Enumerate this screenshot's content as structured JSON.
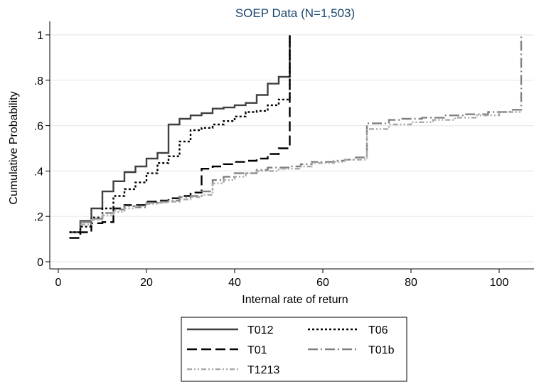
{
  "chart_data": {
    "type": "line",
    "title": "SOEP Data (N=1,503)",
    "xlabel": "Internal rate of return",
    "ylabel": "Cumulative Probability",
    "xlim": [
      -2,
      105
    ],
    "ylim": [
      -0.03,
      1.03
    ],
    "x_ticks": [
      0,
      20,
      40,
      60,
      80,
      100
    ],
    "y_ticks": [
      0,
      0.2,
      0.4,
      0.6,
      0.8,
      1
    ],
    "x_tick_labels": [
      "0",
      "20",
      "40",
      "60",
      "80",
      "100"
    ],
    "y_tick_labels": [
      "0",
      ".2",
      ".4",
      ".6",
      ".8",
      "1"
    ],
    "grid": "horizontal",
    "legend_position": "bottom",
    "series": [
      {
        "name": "T012",
        "color": "#404040",
        "dash": "solid",
        "points": [
          [
            2.5,
            0.13
          ],
          [
            5,
            0.13
          ],
          [
            5,
            0.18
          ],
          [
            7.5,
            0.18
          ],
          [
            7.5,
            0.235
          ],
          [
            10,
            0.235
          ],
          [
            10,
            0.31
          ],
          [
            12.5,
            0.31
          ],
          [
            12.5,
            0.355
          ],
          [
            15,
            0.355
          ],
          [
            15,
            0.395
          ],
          [
            17.5,
            0.395
          ],
          [
            17.5,
            0.42
          ],
          [
            20,
            0.42
          ],
          [
            20,
            0.455
          ],
          [
            22.5,
            0.455
          ],
          [
            22.5,
            0.48
          ],
          [
            25,
            0.48
          ],
          [
            25,
            0.605
          ],
          [
            27.5,
            0.605
          ],
          [
            27.5,
            0.63
          ],
          [
            30,
            0.63
          ],
          [
            30,
            0.645
          ],
          [
            32.5,
            0.645
          ],
          [
            32.5,
            0.655
          ],
          [
            35,
            0.655
          ],
          [
            35,
            0.675
          ],
          [
            37.5,
            0.675
          ],
          [
            37.5,
            0.68
          ],
          [
            40,
            0.68
          ],
          [
            40,
            0.69
          ],
          [
            42.5,
            0.69
          ],
          [
            42.5,
            0.7
          ],
          [
            45,
            0.7
          ],
          [
            45,
            0.735
          ],
          [
            47.5,
            0.735
          ],
          [
            47.5,
            0.785
          ],
          [
            50,
            0.785
          ],
          [
            50,
            0.815
          ],
          [
            52.5,
            0.815
          ],
          [
            52.5,
            1.0
          ]
        ]
      },
      {
        "name": "T06",
        "color": "#000000",
        "dash": "short",
        "points": [
          [
            2.5,
            0.13
          ],
          [
            5,
            0.13
          ],
          [
            5,
            0.155
          ],
          [
            7.5,
            0.155
          ],
          [
            7.5,
            0.195
          ],
          [
            10,
            0.195
          ],
          [
            10,
            0.235
          ],
          [
            12.5,
            0.235
          ],
          [
            12.5,
            0.29
          ],
          [
            15,
            0.29
          ],
          [
            15,
            0.32
          ],
          [
            17.5,
            0.32
          ],
          [
            17.5,
            0.35
          ],
          [
            20,
            0.35
          ],
          [
            20,
            0.39
          ],
          [
            22.5,
            0.39
          ],
          [
            22.5,
            0.435
          ],
          [
            25,
            0.435
          ],
          [
            25,
            0.465
          ],
          [
            27.5,
            0.465
          ],
          [
            27.5,
            0.53
          ],
          [
            30,
            0.53
          ],
          [
            30,
            0.58
          ],
          [
            32.5,
            0.58
          ],
          [
            32.5,
            0.59
          ],
          [
            35,
            0.59
          ],
          [
            35,
            0.605
          ],
          [
            37.5,
            0.605
          ],
          [
            37.5,
            0.62
          ],
          [
            40,
            0.62
          ],
          [
            40,
            0.64
          ],
          [
            42.5,
            0.64
          ],
          [
            42.5,
            0.66
          ],
          [
            45,
            0.66
          ],
          [
            45,
            0.665
          ],
          [
            47.5,
            0.665
          ],
          [
            47.5,
            0.69
          ],
          [
            50,
            0.69
          ],
          [
            50,
            0.715
          ],
          [
            52.5,
            0.715
          ],
          [
            52.5,
            1.0
          ]
        ]
      },
      {
        "name": "T01",
        "color": "#000000",
        "dash": "long",
        "points": [
          [
            2.5,
            0.105
          ],
          [
            5,
            0.105
          ],
          [
            5,
            0.13
          ],
          [
            7.5,
            0.13
          ],
          [
            7.5,
            0.17
          ],
          [
            10,
            0.17
          ],
          [
            10,
            0.175
          ],
          [
            12.5,
            0.175
          ],
          [
            12.5,
            0.235
          ],
          [
            15,
            0.235
          ],
          [
            15,
            0.25
          ],
          [
            20,
            0.25
          ],
          [
            20,
            0.265
          ],
          [
            22.5,
            0.265
          ],
          [
            22.5,
            0.27
          ],
          [
            25,
            0.27
          ],
          [
            25,
            0.28
          ],
          [
            27.5,
            0.28
          ],
          [
            27.5,
            0.29
          ],
          [
            30,
            0.29
          ],
          [
            30,
            0.305
          ],
          [
            32.5,
            0.305
          ],
          [
            32.5,
            0.41
          ],
          [
            35,
            0.41
          ],
          [
            35,
            0.42
          ],
          [
            37.5,
            0.42
          ],
          [
            37.5,
            0.43
          ],
          [
            40,
            0.43
          ],
          [
            40,
            0.44
          ],
          [
            42.5,
            0.44
          ],
          [
            42.5,
            0.445
          ],
          [
            45,
            0.445
          ],
          [
            45,
            0.455
          ],
          [
            47.5,
            0.455
          ],
          [
            47.5,
            0.475
          ],
          [
            50,
            0.475
          ],
          [
            50,
            0.5
          ],
          [
            52.5,
            0.5
          ],
          [
            52.5,
            1.0
          ]
        ]
      },
      {
        "name": "T01b",
        "color": "#808080",
        "dash": "longdot",
        "points": [
          [
            5,
            0.175
          ],
          [
            7.5,
            0.175
          ],
          [
            7.5,
            0.19
          ],
          [
            10,
            0.19
          ],
          [
            10,
            0.215
          ],
          [
            12.5,
            0.215
          ],
          [
            12.5,
            0.23
          ],
          [
            15,
            0.23
          ],
          [
            15,
            0.245
          ],
          [
            17.5,
            0.245
          ],
          [
            17.5,
            0.24
          ],
          [
            20,
            0.24
          ],
          [
            20,
            0.26
          ],
          [
            22.5,
            0.26
          ],
          [
            22.5,
            0.265
          ],
          [
            25,
            0.265
          ],
          [
            25,
            0.27
          ],
          [
            27.5,
            0.27
          ],
          [
            27.5,
            0.285
          ],
          [
            30,
            0.285
          ],
          [
            30,
            0.29
          ],
          [
            32.5,
            0.29
          ],
          [
            32.5,
            0.31
          ],
          [
            35,
            0.31
          ],
          [
            35,
            0.36
          ],
          [
            37.5,
            0.36
          ],
          [
            37.5,
            0.375
          ],
          [
            40,
            0.375
          ],
          [
            40,
            0.39
          ],
          [
            45,
            0.39
          ],
          [
            45,
            0.405
          ],
          [
            47.5,
            0.405
          ],
          [
            47.5,
            0.415
          ],
          [
            52.5,
            0.415
          ],
          [
            52.5,
            0.42
          ],
          [
            55,
            0.42
          ],
          [
            55,
            0.43
          ],
          [
            57.5,
            0.43
          ],
          [
            57.5,
            0.44
          ],
          [
            62.5,
            0.44
          ],
          [
            62.5,
            0.445
          ],
          [
            65,
            0.445
          ],
          [
            65,
            0.45
          ],
          [
            67.5,
            0.45
          ],
          [
            67.5,
            0.46
          ],
          [
            70,
            0.46
          ],
          [
            70,
            0.61
          ],
          [
            75,
            0.61
          ],
          [
            75,
            0.625
          ],
          [
            77.5,
            0.625
          ],
          [
            77.5,
            0.63
          ],
          [
            82.5,
            0.63
          ],
          [
            82.5,
            0.635
          ],
          [
            87.5,
            0.635
          ],
          [
            87.5,
            0.645
          ],
          [
            92.5,
            0.645
          ],
          [
            92.5,
            0.65
          ],
          [
            97.5,
            0.65
          ],
          [
            97.5,
            0.66
          ],
          [
            102.5,
            0.66
          ],
          [
            102.5,
            0.67
          ],
          [
            105,
            0.67
          ],
          [
            105,
            1.0
          ]
        ]
      },
      {
        "name": "T1213",
        "color": "#a8a8a8",
        "dash": "dashdotdot",
        "points": [
          [
            5,
            0.165
          ],
          [
            7.5,
            0.165
          ],
          [
            7.5,
            0.185
          ],
          [
            10,
            0.185
          ],
          [
            10,
            0.205
          ],
          [
            12.5,
            0.205
          ],
          [
            12.5,
            0.22
          ],
          [
            15,
            0.22
          ],
          [
            15,
            0.235
          ],
          [
            17.5,
            0.235
          ],
          [
            17.5,
            0.245
          ],
          [
            20,
            0.245
          ],
          [
            20,
            0.255
          ],
          [
            22.5,
            0.255
          ],
          [
            22.5,
            0.26
          ],
          [
            25,
            0.26
          ],
          [
            25,
            0.265
          ],
          [
            27.5,
            0.265
          ],
          [
            27.5,
            0.275
          ],
          [
            30,
            0.275
          ],
          [
            30,
            0.285
          ],
          [
            32.5,
            0.285
          ],
          [
            32.5,
            0.295
          ],
          [
            35,
            0.295
          ],
          [
            35,
            0.345
          ],
          [
            37.5,
            0.345
          ],
          [
            37.5,
            0.36
          ],
          [
            40,
            0.36
          ],
          [
            40,
            0.375
          ],
          [
            42.5,
            0.375
          ],
          [
            42.5,
            0.39
          ],
          [
            45,
            0.39
          ],
          [
            45,
            0.4
          ],
          [
            50,
            0.4
          ],
          [
            50,
            0.41
          ],
          [
            55,
            0.41
          ],
          [
            55,
            0.42
          ],
          [
            57.5,
            0.42
          ],
          [
            57.5,
            0.435
          ],
          [
            62.5,
            0.435
          ],
          [
            62.5,
            0.44
          ],
          [
            65,
            0.44
          ],
          [
            65,
            0.45
          ],
          [
            70,
            0.45
          ],
          [
            70,
            0.585
          ],
          [
            75,
            0.585
          ],
          [
            75,
            0.605
          ],
          [
            80,
            0.605
          ],
          [
            80,
            0.615
          ],
          [
            85,
            0.615
          ],
          [
            85,
            0.625
          ],
          [
            90,
            0.625
          ],
          [
            90,
            0.635
          ],
          [
            95,
            0.635
          ],
          [
            95,
            0.645
          ],
          [
            100,
            0.645
          ],
          [
            100,
            0.66
          ],
          [
            105,
            0.66
          ]
        ]
      }
    ]
  }
}
